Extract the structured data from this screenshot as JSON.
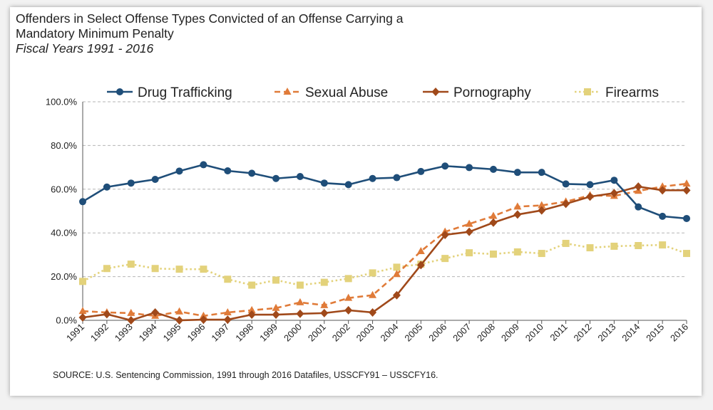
{
  "title_lines": [
    "Offenders in Select Offense Types Convicted of an Offense Carrying a",
    "Mandatory Minimum Penalty"
  ],
  "subtitle": "Fiscal Years 1991 - 2016",
  "source": "SOURCE:  U.S. Sentencing Commission, 1991 through 2016 Datafiles, USSCFY91 – USSCFY16.",
  "chart_data": {
    "type": "line",
    "title": "Offenders in Select Offense Types Convicted of an Offense Carrying a Mandatory Minimum Penalty",
    "subtitle": "Fiscal Years 1991 - 2016",
    "xlabel": "",
    "ylabel": "",
    "x": [
      "1991",
      "1992",
      "1993",
      "1994",
      "1995",
      "1996",
      "1997",
      "1998",
      "1999",
      "2000",
      "2001",
      "2002",
      "2003",
      "2004",
      "2005",
      "2006",
      "2007",
      "2008",
      "2009",
      "2010",
      "2011",
      "2012",
      "2013",
      "2014",
      "2015",
      "2016"
    ],
    "ylim": [
      0,
      100
    ],
    "yticks": [
      "0.0%",
      "20.0%",
      "40.0%",
      "60.0%",
      "80.0%",
      "100.0%"
    ],
    "grid": "horizontal dashed",
    "legend_position": "top",
    "series": [
      {
        "name": "Drug Trafficking",
        "color": "#1f4e79",
        "marker": "circle",
        "dash": "solid",
        "values": [
          54.3,
          61.0,
          62.8,
          64.5,
          68.3,
          71.2,
          68.4,
          67.3,
          64.9,
          65.8,
          62.8,
          62.1,
          64.9,
          65.3,
          68.1,
          70.6,
          69.9,
          69.1,
          67.7,
          67.7,
          62.4,
          62.1,
          64.1,
          51.9,
          47.6,
          46.6
        ]
      },
      {
        "name": "Sexual Abuse",
        "color": "#e07b39",
        "marker": "triangle",
        "dash": "dashed",
        "values": [
          4.2,
          3.6,
          3.3,
          2.0,
          4.0,
          2.0,
          3.6,
          4.6,
          5.6,
          8.2,
          6.9,
          10.2,
          11.5,
          21.1,
          31.6,
          40.5,
          44.1,
          47.7,
          52.0,
          52.6,
          54.3,
          57.2,
          56.9,
          59.2,
          61.2,
          62.5
        ]
      },
      {
        "name": "Pornography",
        "color": "#a0491a",
        "marker": "diamond",
        "dash": "solid",
        "values": [
          1.3,
          2.8,
          0.0,
          3.6,
          0.0,
          0.3,
          0.3,
          2.6,
          2.6,
          3.0,
          3.3,
          4.6,
          3.6,
          11.5,
          25.3,
          39.1,
          40.5,
          44.7,
          48.4,
          50.3,
          53.3,
          56.6,
          58.2,
          61.2,
          59.5,
          59.5
        ]
      },
      {
        "name": "Firearms",
        "color": "#e3d27b",
        "marker": "square",
        "dash": "dotted",
        "values": [
          17.8,
          23.7,
          25.7,
          23.7,
          23.4,
          23.4,
          18.8,
          16.1,
          18.4,
          16.1,
          17.4,
          19.1,
          21.7,
          24.3,
          25.7,
          28.3,
          30.9,
          30.3,
          31.3,
          30.6,
          35.2,
          33.2,
          33.9,
          34.2,
          34.5,
          30.6
        ]
      }
    ]
  }
}
